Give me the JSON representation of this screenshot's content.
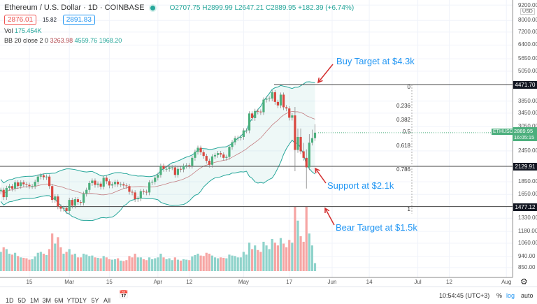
{
  "header": {
    "title": "Ethereum / U.S. Dollar · 1D · COINBASE",
    "open": "O2707.75",
    "high": "H2899.99",
    "low": "L2647.21",
    "close": "C2889.95",
    "change": "+182.39 (+6.74%)",
    "bid": "2876.01",
    "spread": "15.82",
    "ask": "2891.83",
    "vol_label": "Vol",
    "vol_value": "175.454K",
    "bb_label": "BB 20 close 2 0",
    "bb_mid": "3263.98",
    "bb_upper": "4559.76",
    "bb_lower": "1968.20"
  },
  "annotations": {
    "buy": "Buy Target at $4.3k",
    "support": "Support at $2.1k",
    "bear": "Bear Target at $1.5k"
  },
  "levels": {
    "buy": "4471.70",
    "support": "2129.91",
    "bear": "1477.12"
  },
  "fib_labels": [
    "0",
    "0.236",
    "0.382",
    "0.5",
    "0.618",
    "0.786",
    "1"
  ],
  "price_axis": {
    "currency": "USD",
    "scale": "log",
    "ticks": [
      "9200.00",
      "8000.00",
      "7200.00",
      "6400.00",
      "5650.00",
      "5050.00",
      "3850.00",
      "3450.00",
      "3050.00",
      "2450.00",
      "1850.00",
      "1650.00",
      "1330.00",
      "1180.00",
      "1060.00",
      "940.00",
      "850.00"
    ],
    "symbol": "ETHUSD",
    "last": "2889.95",
    "countdown": "16:05:15"
  },
  "time_axis": [
    "15",
    "Mar",
    "15",
    "Apr",
    "12",
    "May",
    "17",
    "Jun",
    "14",
    "Jul",
    "12",
    "Aug"
  ],
  "toolbar": {
    "ranges": [
      "1D",
      "5D",
      "1M",
      "3M",
      "6M",
      "YTD",
      "1Y",
      "5Y",
      "All"
    ],
    "clock": "10:54:45 (UTC+3)",
    "percent": "%",
    "log": "log",
    "auto": "auto"
  },
  "colors": {
    "up": "#26a69a",
    "down": "#ef5350",
    "bb_band": "#26a69a",
    "bb_basis": "#b2494f",
    "note": "#2196f3",
    "arrow": "#d32f2f"
  },
  "chart_data": {
    "type": "candlestick",
    "first_date": "2021-02-05",
    "last_date": "2021-05-26",
    "scale": "log",
    "close": [
      1720,
      1610,
      1750,
      1780,
      1740,
      1840,
      1780,
      1840,
      1810,
      1800,
      1780,
      1780,
      1850,
      1940,
      1960,
      1930,
      1940,
      1780,
      1570,
      1620,
      1480,
      1450,
      1460,
      1420,
      1570,
      1490,
      1580,
      1540,
      1530,
      1660,
      1720,
      1830,
      1870,
      1800,
      1820,
      1770,
      1920,
      1860,
      1790,
      1810,
      1850,
      1810,
      1810,
      1790,
      1780,
      1690,
      1680,
      1580,
      1590,
      1700,
      1690,
      1680,
      1840,
      1850,
      1920,
      1970,
      2140,
      2080,
      2080,
      2110,
      2110,
      1970,
      2080,
      2070,
      2140,
      2150,
      2140,
      2300,
      2430,
      2520,
      2420,
      2340,
      2240,
      2160,
      2330,
      2360,
      2400,
      2370,
      2300,
      2320,
      2540,
      2650,
      2750,
      2760,
      2780,
      2950,
      2950,
      3440,
      3300,
      3520,
      3500,
      3480,
      3900,
      3930,
      3940,
      4170,
      3820,
      3700,
      4080,
      3640,
      3600,
      3310,
      3380,
      2470,
      2780,
      2440,
      2300,
      2110,
      2640,
      2750,
      2890
    ],
    "volume_k": [
      420,
      520,
      480,
      380,
      360,
      400,
      330,
      300,
      290,
      280,
      250,
      260,
      320,
      400,
      420,
      380,
      350,
      480,
      820,
      600,
      740,
      520,
      380,
      420,
      480,
      360,
      380,
      300,
      300,
      380,
      360,
      330,
      340,
      300,
      290,
      280,
      330,
      300,
      260,
      250,
      260,
      280,
      230,
      220,
      240,
      330,
      300,
      380,
      300,
      300,
      260,
      240,
      300,
      260,
      280,
      300,
      380,
      300,
      260,
      280,
      240,
      300,
      250,
      230,
      260,
      250,
      240,
      320,
      350,
      380,
      340,
      330,
      400,
      380,
      340,
      300,
      280,
      300,
      290,
      280,
      360,
      340,
      330,
      300,
      300,
      420,
      360,
      620,
      480,
      560,
      460,
      420,
      640,
      560,
      480,
      700,
      620,
      560,
      720,
      600,
      520,
      680,
      620,
      1400,
      1100,
      760,
      640,
      1400,
      820,
      560,
      175
    ]
  }
}
